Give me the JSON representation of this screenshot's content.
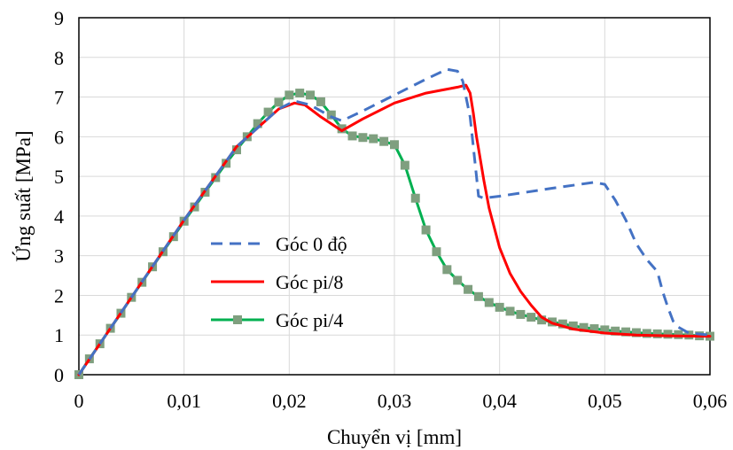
{
  "chart_data": {
    "type": "line",
    "title": "",
    "xlabel": "Chuyển vị [mm]",
    "ylabel": "Ứng suất [MPa]",
    "xlim": [
      0,
      0.06
    ],
    "ylim": [
      0,
      9
    ],
    "x_ticks": [
      0,
      0.01,
      0.02,
      0.03,
      0.04,
      0.05,
      0.06
    ],
    "x_tick_labels": [
      "0",
      "0,01",
      "0,02",
      "0,03",
      "0,04",
      "0,05",
      "0,06"
    ],
    "y_ticks": [
      0,
      1,
      2,
      3,
      4,
      5,
      6,
      7,
      8,
      9
    ],
    "y_tick_labels": [
      "0",
      "1",
      "2",
      "3",
      "4",
      "5",
      "6",
      "7",
      "8",
      "9"
    ],
    "grid": true,
    "legend_position": "center-left",
    "series": [
      {
        "name": "Góc 0 độ",
        "color": "#4472c4",
        "style": "dashed",
        "marker": "none",
        "x": [
          0,
          0.005,
          0.01,
          0.015,
          0.019,
          0.0205,
          0.022,
          0.024,
          0.025,
          0.027,
          0.03,
          0.033,
          0.035,
          0.036,
          0.0365,
          0.0372,
          0.0378,
          0.038,
          0.0385,
          0.04,
          0.045,
          0.049,
          0.05,
          0.051,
          0.052,
          0.053,
          0.054,
          0.055,
          0.0555,
          0.056,
          0.0565,
          0.057,
          0.058,
          0.06
        ],
        "y": [
          0,
          1.95,
          3.9,
          5.75,
          6.7,
          6.9,
          6.8,
          6.5,
          6.4,
          6.65,
          7.05,
          7.45,
          7.7,
          7.65,
          7.4,
          6.5,
          5.0,
          4.5,
          4.45,
          4.5,
          4.7,
          4.85,
          4.8,
          4.4,
          3.9,
          3.3,
          2.9,
          2.6,
          2.1,
          1.7,
          1.35,
          1.2,
          1.05,
          1.0
        ]
      },
      {
        "name": "Góc pi/8",
        "color": "#ff0000",
        "style": "solid",
        "marker": "none",
        "x": [
          0,
          0.005,
          0.01,
          0.015,
          0.019,
          0.0205,
          0.0215,
          0.023,
          0.025,
          0.027,
          0.03,
          0.033,
          0.035,
          0.036,
          0.0368,
          0.0372,
          0.0375,
          0.0378,
          0.038,
          0.0385,
          0.039,
          0.04,
          0.041,
          0.042,
          0.043,
          0.044,
          0.045,
          0.047,
          0.05,
          0.053,
          0.056,
          0.06
        ],
        "y": [
          0,
          1.95,
          3.9,
          5.75,
          6.7,
          6.85,
          6.8,
          6.5,
          6.15,
          6.45,
          6.85,
          7.1,
          7.2,
          7.25,
          7.3,
          7.1,
          6.6,
          6.0,
          5.7,
          4.9,
          4.2,
          3.2,
          2.55,
          2.1,
          1.75,
          1.45,
          1.3,
          1.15,
          1.05,
          1.0,
          0.98,
          0.97
        ]
      },
      {
        "name": "Góc pi/4",
        "color": "#00b050",
        "marker_color": "#7f9f7f",
        "style": "solid",
        "marker": "square",
        "x": [
          0,
          0.001,
          0.002,
          0.003,
          0.004,
          0.005,
          0.006,
          0.007,
          0.008,
          0.009,
          0.01,
          0.011,
          0.012,
          0.013,
          0.014,
          0.015,
          0.016,
          0.017,
          0.018,
          0.019,
          0.02,
          0.021,
          0.022,
          0.023,
          0.024,
          0.025,
          0.026,
          0.027,
          0.028,
          0.029,
          0.03,
          0.031,
          0.032,
          0.033,
          0.034,
          0.035,
          0.036,
          0.037,
          0.038,
          0.039,
          0.04,
          0.041,
          0.042,
          0.043,
          0.044,
          0.045,
          0.046,
          0.047,
          0.048,
          0.049,
          0.05,
          0.051,
          0.052,
          0.053,
          0.054,
          0.055,
          0.056,
          0.057,
          0.058,
          0.059,
          0.06
        ],
        "y": [
          0,
          0.4,
          0.78,
          1.17,
          1.55,
          1.95,
          2.33,
          2.72,
          3.1,
          3.48,
          3.87,
          4.23,
          4.6,
          4.97,
          5.33,
          5.67,
          6.0,
          6.33,
          6.62,
          6.87,
          7.05,
          7.1,
          7.05,
          6.88,
          6.55,
          6.2,
          6.02,
          5.98,
          5.95,
          5.88,
          5.8,
          5.28,
          4.45,
          3.65,
          3.1,
          2.65,
          2.38,
          2.15,
          1.97,
          1.82,
          1.7,
          1.6,
          1.52,
          1.45,
          1.38,
          1.33,
          1.28,
          1.23,
          1.19,
          1.16,
          1.13,
          1.1,
          1.08,
          1.06,
          1.04,
          1.03,
          1.02,
          1.01,
          1.0,
          0.98,
          0.97
        ]
      }
    ]
  }
}
